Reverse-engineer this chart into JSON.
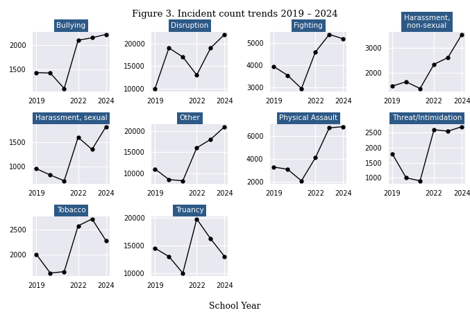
{
  "title": "Figure 3. Incident count trends 2019 – 2024",
  "xlabel": "School Year",
  "years": [
    2019,
    2020,
    2021,
    2022,
    2023,
    2024
  ],
  "subplots": [
    {
      "title": "Bullying",
      "values": [
        1430,
        1420,
        1100,
        2100,
        2150,
        2220
      ],
      "row": 0,
      "col": 0
    },
    {
      "title": "Disruption",
      "values": [
        10000,
        19000,
        17000,
        13000,
        19000,
        22000
      ],
      "row": 0,
      "col": 1
    },
    {
      "title": "Fighting",
      "values": [
        3950,
        3550,
        2950,
        4600,
        5400,
        5200
      ],
      "row": 0,
      "col": 2
    },
    {
      "title": "Harassment,\nnon-sexual",
      "values": [
        1480,
        1650,
        1380,
        2350,
        2620,
        3550
      ],
      "row": 0,
      "col": 3
    },
    {
      "title": "Harassment, sexual",
      "values": [
        950,
        820,
        700,
        1600,
        1350,
        1820
      ],
      "row": 1,
      "col": 0
    },
    {
      "title": "Other",
      "values": [
        11000,
        8500,
        8200,
        16000,
        18000,
        21000
      ],
      "row": 1,
      "col": 1
    },
    {
      "title": "Physical Assault",
      "values": [
        3300,
        3100,
        2100,
        4100,
        6700,
        6800
      ],
      "row": 1,
      "col": 2
    },
    {
      "title": "Threat/Intimidation",
      "values": [
        1800,
        1000,
        900,
        2600,
        2550,
        2700
      ],
      "row": 1,
      "col": 3
    },
    {
      "title": "Tobacco",
      "values": [
        2000,
        1620,
        1650,
        2580,
        2720,
        2280
      ],
      "row": 2,
      "col": 0
    },
    {
      "title": "Truancy",
      "values": [
        14500,
        13000,
        10000,
        19800,
        16200,
        13000
      ],
      "row": 2,
      "col": 1
    }
  ],
  "header_bg": "#2d5986",
  "header_text": "white",
  "plot_bg": "#e8e8f0",
  "grid_color": "white",
  "line_color": "black",
  "marker": "o",
  "marker_size": 3.5,
  "tick_label_size": 7,
  "title_fontsize": 7.5
}
